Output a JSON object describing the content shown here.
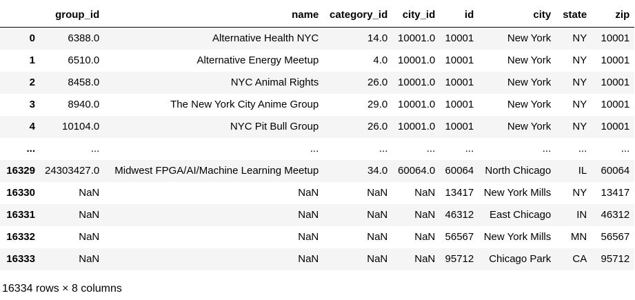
{
  "table": {
    "columns": [
      "",
      "group_id",
      "name",
      "category_id",
      "city_id",
      "id",
      "city",
      "state",
      "zip"
    ],
    "rows": [
      [
        "0",
        "6388.0",
        "Alternative Health NYC",
        "14.0",
        "10001.0",
        "10001",
        "New York",
        "NY",
        "10001"
      ],
      [
        "1",
        "6510.0",
        "Alternative Energy Meetup",
        "4.0",
        "10001.0",
        "10001",
        "New York",
        "NY",
        "10001"
      ],
      [
        "2",
        "8458.0",
        "NYC Animal Rights",
        "26.0",
        "10001.0",
        "10001",
        "New York",
        "NY",
        "10001"
      ],
      [
        "3",
        "8940.0",
        "The New York City Anime Group",
        "29.0",
        "10001.0",
        "10001",
        "New York",
        "NY",
        "10001"
      ],
      [
        "4",
        "10104.0",
        "NYC Pit Bull Group",
        "26.0",
        "10001.0",
        "10001",
        "New York",
        "NY",
        "10001"
      ],
      [
        "...",
        "...",
        "...",
        "...",
        "...",
        "...",
        "...",
        "...",
        "..."
      ],
      [
        "16329",
        "24303427.0",
        "Midwest FPGA/AI/Machine Learning Meetup",
        "34.0",
        "60064.0",
        "60064",
        "North Chicago",
        "IL",
        "60064"
      ],
      [
        "16330",
        "NaN",
        "NaN",
        "NaN",
        "NaN",
        "13417",
        "New York Mills",
        "NY",
        "13417"
      ],
      [
        "16331",
        "NaN",
        "NaN",
        "NaN",
        "NaN",
        "46312",
        "East Chicago",
        "IN",
        "46312"
      ],
      [
        "16332",
        "NaN",
        "NaN",
        "NaN",
        "NaN",
        "56567",
        "New York Mills",
        "MN",
        "56567"
      ],
      [
        "16333",
        "NaN",
        "NaN",
        "NaN",
        "NaN",
        "95712",
        "Chicago Park",
        "CA",
        "95712"
      ]
    ]
  },
  "footer": "16334 rows × 8 columns"
}
